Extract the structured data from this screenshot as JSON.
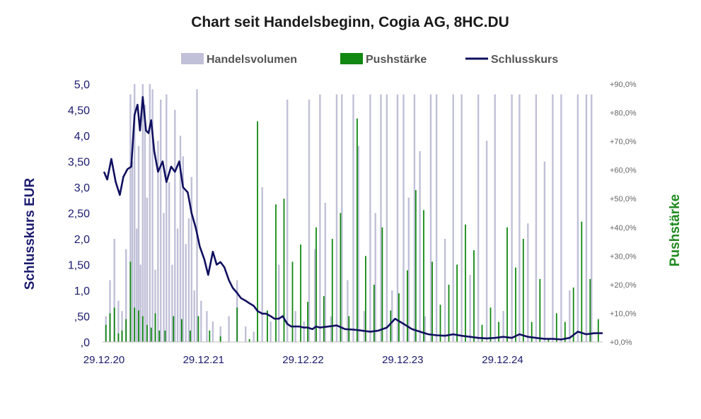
{
  "chart_data": {
    "type": "line",
    "title": "Chart seit Handelsbeginn, Cogia AG, 8HC.DU",
    "ylabel": "Schlusskurs EUR",
    "y2label": "Pushstärke",
    "ylim": [
      0,
      5
    ],
    "y2lim": [
      0,
      90
    ],
    "legend_position": "top-center",
    "y_ticks": [
      ",0",
      ",50",
      "1,0",
      "1,50",
      "2,0",
      "2,50",
      "3,0",
      "3,50",
      "4,0",
      "4,50",
      "5,0"
    ],
    "y2_ticks": [
      "+0,0%",
      "+10,0%",
      "+20,0%",
      "+30,0%",
      "+40,0%",
      "+50,0%",
      "+60,0%",
      "+70,0%",
      "+80,0%",
      "+90,0%"
    ],
    "x_ticks": [
      "29.12.20",
      "29.12.21",
      "29.12.22",
      "29.12.23",
      "29.12.24"
    ],
    "x_range": [
      "2020-12-29",
      "2025-12-31"
    ],
    "colors": {
      "volume": "#c0c0d8",
      "push": "#118811",
      "close": "#101060"
    },
    "series": [
      {
        "name": "Schlusskurs",
        "type": "line",
        "x": [
          "2020-12-29",
          "2021-01-10",
          "2021-01-25",
          "2021-02-10",
          "2021-02-25",
          "2021-03-10",
          "2021-03-25",
          "2021-04-08",
          "2021-04-20",
          "2021-05-01",
          "2021-05-10",
          "2021-05-20",
          "2021-06-01",
          "2021-06-10",
          "2021-06-20",
          "2021-07-01",
          "2021-07-15",
          "2021-08-01",
          "2021-08-15",
          "2021-09-01",
          "2021-09-15",
          "2021-10-01",
          "2021-10-15",
          "2021-11-01",
          "2021-11-15",
          "2021-12-01",
          "2021-12-15",
          "2022-01-01",
          "2022-01-15",
          "2022-02-01",
          "2022-02-15",
          "2022-03-01",
          "2022-03-15",
          "2022-04-01",
          "2022-04-15",
          "2022-05-01",
          "2022-05-15",
          "2022-06-01",
          "2022-06-15",
          "2022-07-01",
          "2022-07-15",
          "2022-08-01",
          "2022-08-15",
          "2022-09-01",
          "2022-09-15",
          "2022-10-01",
          "2022-10-15",
          "2022-11-01",
          "2022-11-15",
          "2022-12-01",
          "2022-12-15",
          "2023-01-01",
          "2023-01-15",
          "2023-02-01",
          "2023-02-15",
          "2023-03-01",
          "2023-04-01",
          "2023-05-01",
          "2023-06-01",
          "2023-07-01",
          "2023-08-01",
          "2023-09-01",
          "2023-10-01",
          "2023-11-01",
          "2023-12-01",
          "2024-01-01",
          "2024-02-01",
          "2024-03-01",
          "2024-04-01",
          "2024-05-01",
          "2024-06-01",
          "2024-07-01",
          "2024-08-01",
          "2024-09-01",
          "2024-10-01",
          "2024-11-01",
          "2024-12-01",
          "2025-01-01",
          "2025-02-01",
          "2025-03-01",
          "2025-04-01",
          "2025-05-01",
          "2025-06-01",
          "2025-07-01",
          "2025-08-01",
          "2025-09-01",
          "2025-10-01",
          "2025-11-01",
          "2025-12-01",
          "2025-12-31"
        ],
        "values": [
          3.3,
          3.15,
          3.55,
          3.1,
          2.85,
          3.2,
          3.35,
          3.4,
          4.4,
          4.6,
          4.1,
          4.75,
          4.1,
          4.05,
          4.3,
          3.7,
          3.3,
          3.5,
          3.1,
          3.4,
          3.3,
          3.5,
          3.0,
          2.9,
          2.5,
          2.2,
          1.85,
          1.6,
          1.3,
          1.75,
          1.5,
          1.55,
          1.45,
          1.2,
          1.05,
          0.95,
          0.85,
          0.8,
          0.75,
          0.7,
          0.6,
          0.55,
          0.55,
          0.5,
          0.45,
          0.45,
          0.5,
          0.35,
          0.3,
          0.3,
          0.3,
          0.28,
          0.28,
          0.25,
          0.3,
          0.28,
          0.3,
          0.32,
          0.25,
          0.24,
          0.22,
          0.2,
          0.22,
          0.28,
          0.45,
          0.35,
          0.25,
          0.2,
          0.15,
          0.13,
          0.12,
          0.15,
          0.12,
          0.1,
          0.08,
          0.07,
          0.08,
          0.1,
          0.08,
          0.15,
          0.1,
          0.08,
          0.06,
          0.06,
          0.05,
          0.08,
          0.2,
          0.15,
          0.17,
          0.17
        ]
      },
      {
        "name": "Handelsvolumen",
        "type": "bar",
        "x": [
          "2021-01-05",
          "2021-01-20",
          "2021-02-05",
          "2021-02-20",
          "2021-03-05",
          "2021-03-20",
          "2021-04-05",
          "2021-04-12",
          "2021-04-20",
          "2021-04-28",
          "2021-05-05",
          "2021-05-12",
          "2021-05-20",
          "2021-05-28",
          "2021-06-05",
          "2021-06-15",
          "2021-06-25",
          "2021-07-05",
          "2021-07-15",
          "2021-07-25",
          "2021-08-05",
          "2021-08-15",
          "2021-08-25",
          "2021-09-05",
          "2021-09-15",
          "2021-09-25",
          "2021-10-05",
          "2021-10-15",
          "2021-10-25",
          "2021-11-05",
          "2021-11-15",
          "2021-11-25",
          "2021-12-05",
          "2021-12-20",
          "2022-01-10",
          "2022-02-01",
          "2022-03-01",
          "2022-04-01",
          "2022-05-01",
          "2022-06-01",
          "2022-07-01",
          "2022-08-01",
          "2022-09-01",
          "2022-10-01",
          "2022-11-01",
          "2022-12-01",
          "2023-01-01",
          "2023-01-20",
          "2023-02-10",
          "2023-03-01",
          "2023-03-20",
          "2023-04-10",
          "2023-05-01",
          "2023-05-20",
          "2023-06-10",
          "2023-07-01",
          "2023-07-20",
          "2023-08-10",
          "2023-09-01",
          "2023-09-20",
          "2023-10-10",
          "2023-11-01",
          "2023-11-20",
          "2023-12-10",
          "2024-01-01",
          "2024-01-20",
          "2024-02-10",
          "2024-03-01",
          "2024-03-20",
          "2024-04-10",
          "2024-05-01",
          "2024-06-01",
          "2024-07-01",
          "2024-08-01",
          "2024-09-01",
          "2024-10-01",
          "2024-11-01",
          "2024-12-01",
          "2025-01-01",
          "2025-02-01",
          "2025-03-01",
          "2025-04-01",
          "2025-05-01",
          "2025-06-01",
          "2025-07-01",
          "2025-08-01",
          "2025-09-01",
          "2025-10-01",
          "2025-11-01",
          "2025-11-20"
        ],
        "values": [
          0.5,
          1.2,
          2.0,
          0.8,
          0.6,
          1.8,
          4.8,
          3.5,
          5.0,
          2.2,
          3.8,
          1.5,
          5.0,
          4.6,
          2.8,
          5.0,
          4.9,
          1.4,
          3.9,
          4.7,
          2.5,
          4.8,
          3.1,
          1.5,
          4.5,
          2.2,
          4.0,
          3.6,
          1.9,
          2.4,
          3.2,
          1.0,
          4.9,
          0.8,
          0.6,
          0.4,
          0.3,
          0.5,
          1.2,
          0.3,
          0.2,
          3.0,
          0.4,
          1.5,
          4.7,
          0.6,
          0.4,
          4.7,
          1.8,
          4.8,
          2.7,
          0.5,
          4.8,
          4.8,
          1.2,
          4.8,
          3.8,
          0.6,
          4.8,
          2.5,
          4.8,
          4.8,
          1.0,
          4.8,
          4.8,
          2.8,
          4.8,
          3.7,
          0.5,
          4.8,
          4.8,
          2.0,
          4.8,
          4.8,
          1.3,
          4.8,
          3.9,
          4.8,
          0.6,
          4.8,
          4.8,
          2.3,
          4.8,
          3.5,
          4.8,
          4.8,
          1.0,
          4.8,
          4.8,
          4.8
        ]
      },
      {
        "name": "Pushstärke",
        "type": "bar",
        "x": [
          "2021-01-05",
          "2021-01-20",
          "2021-02-05",
          "2021-02-20",
          "2021-03-05",
          "2021-03-20",
          "2021-04-05",
          "2021-04-20",
          "2021-05-05",
          "2021-05-20",
          "2021-06-05",
          "2021-06-20",
          "2021-07-05",
          "2021-07-20",
          "2021-08-10",
          "2021-09-10",
          "2021-10-10",
          "2021-11-10",
          "2021-12-10",
          "2022-01-20",
          "2022-03-01",
          "2022-05-01",
          "2022-06-15",
          "2022-07-15",
          "2022-08-20",
          "2022-09-20",
          "2022-10-20",
          "2022-11-20",
          "2022-12-20",
          "2023-01-15",
          "2023-02-15",
          "2023-03-15",
          "2023-04-15",
          "2023-05-15",
          "2023-06-15",
          "2023-07-15",
          "2023-08-15",
          "2023-09-15",
          "2023-10-15",
          "2023-11-15",
          "2023-12-15",
          "2024-01-15",
          "2024-02-15",
          "2024-03-15",
          "2024-04-15",
          "2024-05-15",
          "2024-06-15",
          "2024-07-15",
          "2024-08-15",
          "2024-09-15",
          "2024-10-15",
          "2024-11-15",
          "2024-12-15",
          "2025-01-15",
          "2025-02-15",
          "2025-03-15",
          "2025-04-15",
          "2025-05-15",
          "2025-06-15",
          "2025-07-15",
          "2025-08-15",
          "2025-09-15",
          "2025-10-15",
          "2025-11-15",
          "2025-12-15"
        ],
        "values": [
          6,
          10,
          12,
          3,
          4,
          8,
          28,
          12,
          11,
          9,
          6,
          5,
          10,
          4,
          4,
          9,
          8,
          4,
          9,
          4,
          2,
          12,
          1,
          77,
          11,
          48,
          50,
          28,
          34,
          14,
          40,
          16,
          36,
          45,
          9,
          78,
          30,
          20,
          40,
          11,
          17,
          25,
          53,
          46,
          28,
          13,
          20,
          27,
          41,
          32,
          6,
          12,
          7,
          40,
          26,
          36,
          7,
          22,
          1,
          10,
          7,
          19,
          42,
          22,
          8
        ]
      }
    ]
  }
}
